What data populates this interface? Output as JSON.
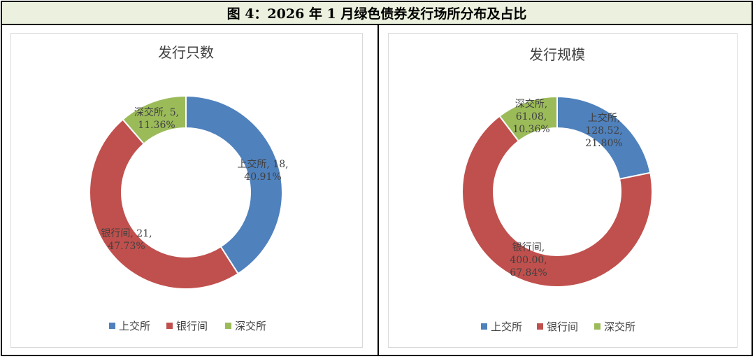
{
  "figure_title": "图 4：2026 年 1 月绿色债券发行场所分布及占比",
  "chart_data": [
    {
      "type": "pie",
      "title": "发行只数",
      "categories": [
        "上交所",
        "银行间",
        "深交所"
      ],
      "values": [
        18,
        21,
        5
      ],
      "value_labels": [
        "18",
        "21",
        "5"
      ],
      "percent_labels": [
        "40.91%",
        "47.73%",
        "11.36%"
      ],
      "colors": [
        "#4f81bd",
        "#c0504d",
        "#9bbb59"
      ],
      "legend_position": "bottom"
    },
    {
      "type": "pie",
      "title": "发行规模",
      "categories": [
        "上交所",
        "银行间",
        "深交所"
      ],
      "values": [
        128.52,
        400.0,
        61.08
      ],
      "value_labels": [
        "128.52",
        "400.00",
        "61.08"
      ],
      "percent_labels": [
        "21.80%",
        "67.84%",
        "10.36%"
      ],
      "colors": [
        "#4f81bd",
        "#c0504d",
        "#9bbb59"
      ],
      "legend_position": "bottom"
    }
  ]
}
